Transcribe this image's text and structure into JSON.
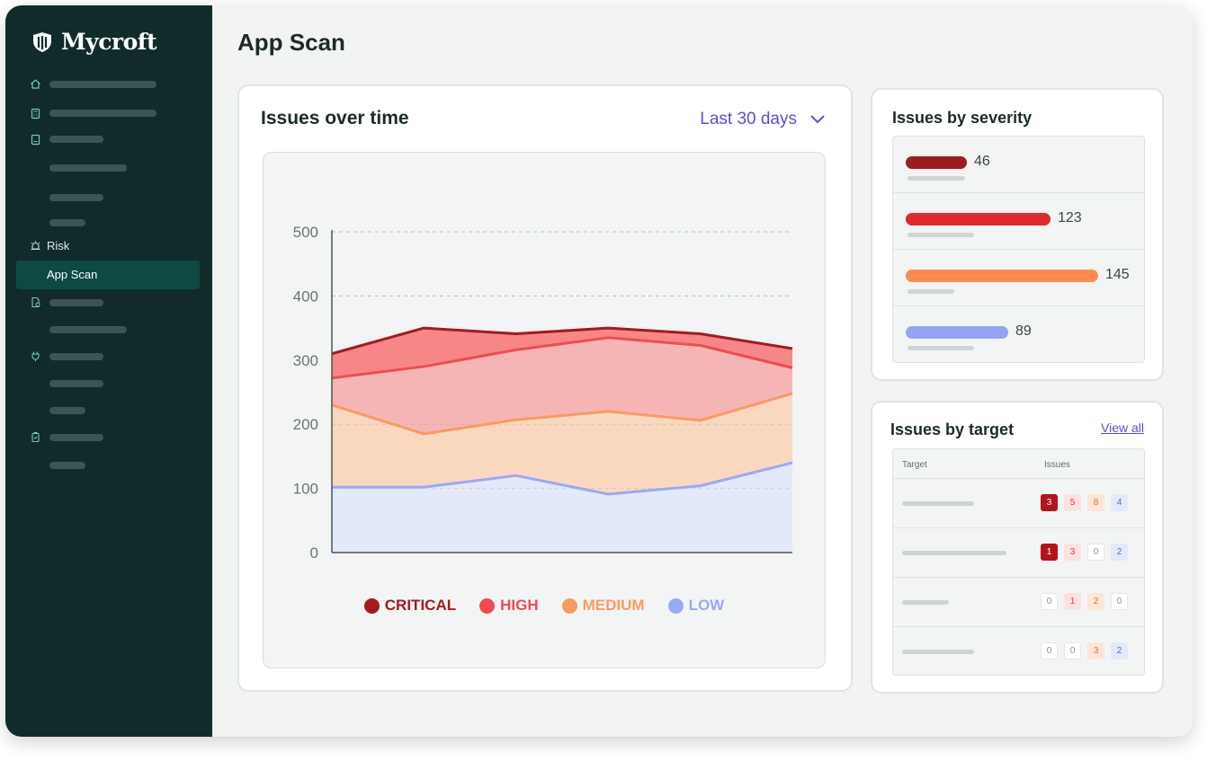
{
  "app": {
    "name": "Mycroft"
  },
  "sidebar": {
    "risk_label": "Risk",
    "active_label": "App Scan"
  },
  "page": {
    "title": "App Scan"
  },
  "issues_over_time": {
    "title": "Issues over time",
    "range_label": "Last 30 days"
  },
  "chart_data": {
    "type": "area",
    "title": "Issues over time",
    "stacked": true,
    "x": [
      1,
      2,
      3,
      4,
      5,
      6
    ],
    "y_ticks": [
      "0",
      "100",
      "200",
      "300",
      "400",
      "500"
    ],
    "ylim": [
      0,
      500
    ],
    "grid": true,
    "legend_position": "bottom",
    "series": [
      {
        "name": "LOW",
        "values": [
          102,
          102,
          120,
          91,
          104,
          140
        ],
        "color": "#9aa8f8",
        "fill": "#e3e8fb"
      },
      {
        "name": "MEDIUM",
        "values": [
          230,
          185,
          207,
          220,
          206,
          248
        ],
        "color": "#fb9a5e",
        "fill": "#fad8c0"
      },
      {
        "name": "HIGH",
        "values": [
          272,
          290,
          316,
          335,
          323,
          288
        ],
        "color": "#ef4b52",
        "fill": "#f6b5b5"
      },
      {
        "name": "CRITICAL",
        "values": [
          310,
          350,
          341,
          350,
          341,
          318
        ],
        "color": "#a5191f",
        "fill": "#f78787"
      }
    ],
    "legend": [
      {
        "label": "CRITICAL",
        "color": "#a5191f"
      },
      {
        "label": "HIGH",
        "color": "#ef4b52"
      },
      {
        "label": "MEDIUM",
        "color": "#fb9a5e"
      },
      {
        "label": "LOW",
        "color": "#9aa8f8"
      }
    ]
  },
  "severity": {
    "title": "Issues by severity",
    "rows": [
      {
        "value": 46,
        "label": "46",
        "color": "#9e1b22"
      },
      {
        "value": 123,
        "label": "123",
        "color": "#e02a2c"
      },
      {
        "value": 145,
        "label": "145",
        "color": "#ff8c4d"
      },
      {
        "value": 89,
        "label": "89",
        "color": "#93a4f7"
      }
    ]
  },
  "targets": {
    "title": "Issues by target",
    "view_all": "View all",
    "col_target": "Target",
    "col_issues": "Issues",
    "rows": [
      {
        "counts": [
          "3",
          "5",
          "8",
          "4"
        ]
      },
      {
        "counts": [
          "1",
          "3",
          "0",
          "2"
        ]
      },
      {
        "counts": [
          "0",
          "1",
          "2",
          "0"
        ]
      },
      {
        "counts": [
          "0",
          "0",
          "3",
          "2"
        ]
      }
    ]
  }
}
